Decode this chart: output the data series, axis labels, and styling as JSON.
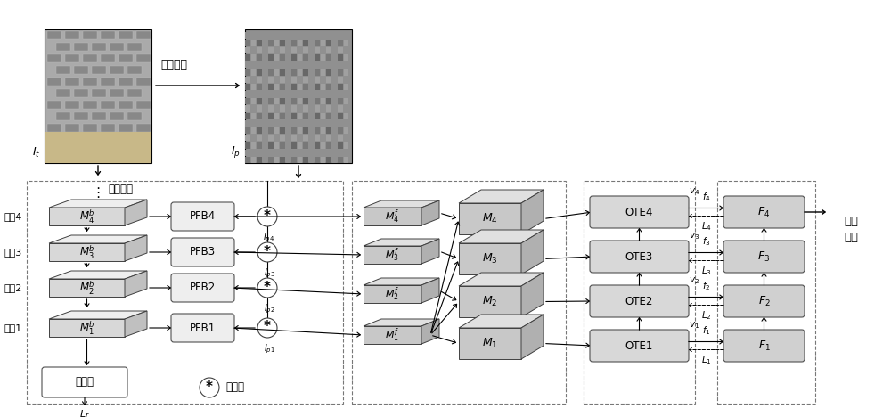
{
  "bg_color": "#ffffff",
  "scales": [
    "尺度4",
    "尺度3",
    "尺度2",
    "尺度1"
  ],
  "Mb_labels": [
    "$M_4^b$",
    "$M_3^b$",
    "$M_2^b$",
    "$M_1^b$"
  ],
  "PFB_labels": [
    "PFB4",
    "PFB3",
    "PFB2",
    "PFB1"
  ],
  "Ip_labels": [
    "$I_{p4}$",
    "$I_{p3}$",
    "$I_{p2}$",
    "$I_{p1}$"
  ],
  "Mf_labels": [
    "$M_4^f$",
    "$M_3^f$",
    "$M_2^f$",
    "$M_1^f$"
  ],
  "M_labels": [
    "$M_4$",
    "$M_3$",
    "$M_2$",
    "$M_1$"
  ],
  "OTE_labels": [
    "OTE4",
    "OTE3",
    "OTE2",
    "OTE1"
  ],
  "v_labels": [
    "$v_4$",
    "$v_3$",
    "$v_2$",
    "$v_1$"
  ],
  "f_labels": [
    "$f_4$",
    "$f_3$",
    "$f_2$",
    "$f_1$"
  ],
  "F_labels": [
    "$F_4$",
    "$F_3$",
    "$F_2$",
    "$F_1$"
  ],
  "L_labels": [
    "$L_4$",
    "$L_3$",
    "$L_2$",
    "$L_1$"
  ],
  "decoder_label": "解码器",
  "Lr_label": "$L_r$",
  "backbone_label": "主干网络",
  "prior_label": "先验提取",
  "It_label": "$I_t$",
  "Ip_img_label": "$I_p$",
  "downsample_label": "下采样",
  "classify_label": "分类\n结果"
}
